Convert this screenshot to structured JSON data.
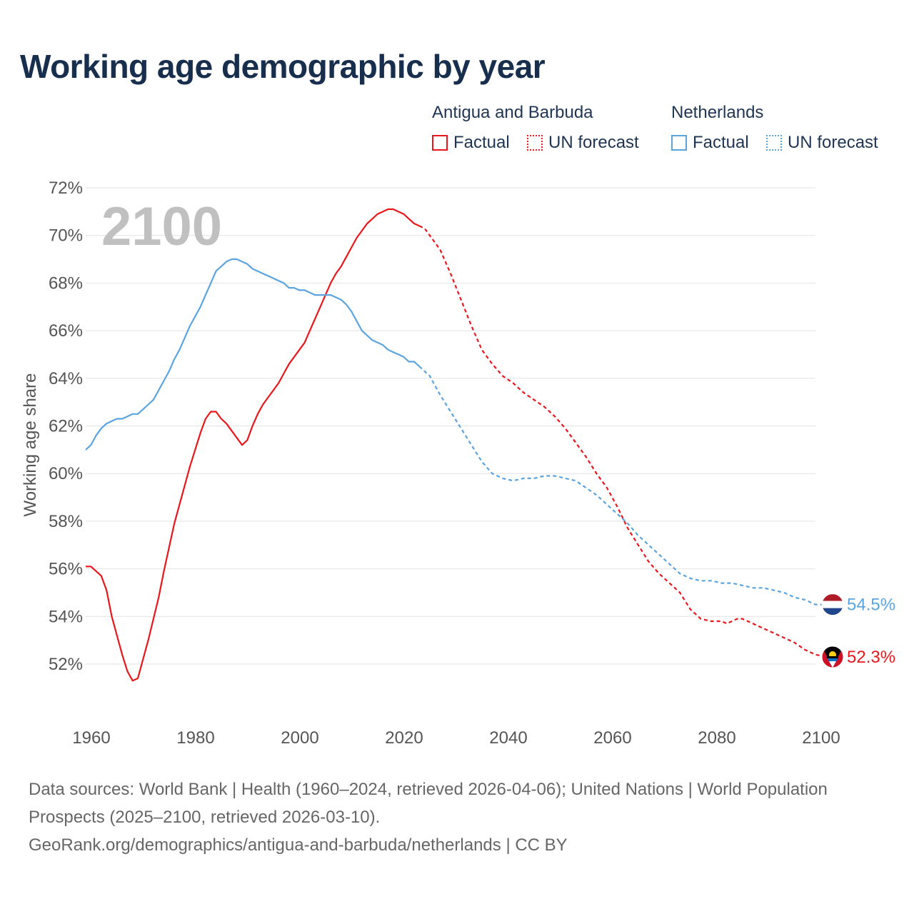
{
  "title": "Working age demographic by year",
  "legend": {
    "groups": [
      {
        "name": "Antigua and Barbuda",
        "factual_label": "Factual",
        "forecast_label": "UN forecast",
        "color": "#e8171c"
      },
      {
        "name": "Netherlands",
        "factual_label": "Factual",
        "forecast_label": "UN forecast",
        "color": "#5ba4e0"
      }
    ]
  },
  "footer": {
    "line1": "Data sources: World Bank | Health (1960–2024, retrieved 2026-04-06); United Nations | World Population Prospects (2025–2100, retrieved 2026-03-10).",
    "line2": "GeoRank.org/demographics/antigua-and-barbuda/netherlands | CC BY"
  },
  "chart_data": {
    "type": "line",
    "title": "Working age demographic by year",
    "year_watermark": "2100",
    "xlabel": "",
    "ylabel": "Working age share",
    "xlim": [
      1960,
      2103
    ],
    "ylim": [
      50,
      72
    ],
    "x_ticks": [
      1960,
      1980,
      2000,
      2020,
      2040,
      2060,
      2080,
      2100
    ],
    "y_ticks": [
      52,
      54,
      56,
      58,
      60,
      62,
      64,
      66,
      68,
      70,
      72
    ],
    "y_tick_suffix": "%",
    "grid": true,
    "legend_position": "top-right",
    "forecast_start_year": 2024,
    "series": [
      {
        "name": "Antigua and Barbuda",
        "color": "#e8171c",
        "end_label": "52.3%",
        "flag": "antigua-and-barbuda",
        "points": [
          [
            1960,
            56.1
          ],
          [
            1961,
            56.1
          ],
          [
            1962,
            55.9
          ],
          [
            1963,
            55.7
          ],
          [
            1964,
            55.1
          ],
          [
            1965,
            54.0
          ],
          [
            1966,
            53.2
          ],
          [
            1967,
            52.4
          ],
          [
            1968,
            51.7
          ],
          [
            1969,
            51.3
          ],
          [
            1970,
            51.4
          ],
          [
            1971,
            52.2
          ],
          [
            1972,
            53.0
          ],
          [
            1973,
            53.9
          ],
          [
            1974,
            54.8
          ],
          [
            1975,
            55.9
          ],
          [
            1976,
            56.9
          ],
          [
            1977,
            57.9
          ],
          [
            1978,
            58.7
          ],
          [
            1979,
            59.5
          ],
          [
            1980,
            60.3
          ],
          [
            1981,
            61.0
          ],
          [
            1982,
            61.7
          ],
          [
            1983,
            62.3
          ],
          [
            1984,
            62.6
          ],
          [
            1985,
            62.6
          ],
          [
            1986,
            62.3
          ],
          [
            1987,
            62.1
          ],
          [
            1988,
            61.8
          ],
          [
            1989,
            61.5
          ],
          [
            1990,
            61.2
          ],
          [
            1991,
            61.4
          ],
          [
            1992,
            62.0
          ],
          [
            1993,
            62.5
          ],
          [
            1994,
            62.9
          ],
          [
            1995,
            63.2
          ],
          [
            1996,
            63.5
          ],
          [
            1997,
            63.8
          ],
          [
            1998,
            64.2
          ],
          [
            1999,
            64.6
          ],
          [
            2000,
            64.9
          ],
          [
            2001,
            65.2
          ],
          [
            2002,
            65.5
          ],
          [
            2003,
            66.0
          ],
          [
            2004,
            66.5
          ],
          [
            2005,
            67.0
          ],
          [
            2006,
            67.5
          ],
          [
            2007,
            68.0
          ],
          [
            2008,
            68.4
          ],
          [
            2009,
            68.7
          ],
          [
            2010,
            69.1
          ],
          [
            2011,
            69.5
          ],
          [
            2012,
            69.9
          ],
          [
            2013,
            70.2
          ],
          [
            2014,
            70.5
          ],
          [
            2015,
            70.7
          ],
          [
            2016,
            70.9
          ],
          [
            2017,
            71.0
          ],
          [
            2018,
            71.1
          ],
          [
            2019,
            71.1
          ],
          [
            2020,
            71.0
          ],
          [
            2021,
            70.9
          ],
          [
            2022,
            70.7
          ],
          [
            2023,
            70.5
          ],
          [
            2024,
            70.4
          ],
          [
            2025,
            70.3
          ],
          [
            2026,
            70.0
          ],
          [
            2028,
            69.4
          ],
          [
            2030,
            68.4
          ],
          [
            2032,
            67.3
          ],
          [
            2034,
            66.2
          ],
          [
            2036,
            65.2
          ],
          [
            2038,
            64.6
          ],
          [
            2040,
            64.1
          ],
          [
            2042,
            63.8
          ],
          [
            2044,
            63.4
          ],
          [
            2046,
            63.1
          ],
          [
            2048,
            62.8
          ],
          [
            2050,
            62.4
          ],
          [
            2052,
            61.9
          ],
          [
            2054,
            61.3
          ],
          [
            2056,
            60.7
          ],
          [
            2058,
            60.0
          ],
          [
            2060,
            59.4
          ],
          [
            2062,
            58.6
          ],
          [
            2064,
            57.7
          ],
          [
            2066,
            57.0
          ],
          [
            2068,
            56.3
          ],
          [
            2070,
            55.8
          ],
          [
            2072,
            55.4
          ],
          [
            2074,
            55.0
          ],
          [
            2076,
            54.3
          ],
          [
            2078,
            53.9
          ],
          [
            2080,
            53.8
          ],
          [
            2082,
            53.8
          ],
          [
            2083,
            53.7
          ],
          [
            2085,
            53.9
          ],
          [
            2086,
            53.9
          ],
          [
            2088,
            53.7
          ],
          [
            2090,
            53.5
          ],
          [
            2092,
            53.3
          ],
          [
            2094,
            53.1
          ],
          [
            2096,
            52.9
          ],
          [
            2098,
            52.6
          ],
          [
            2100,
            52.4
          ],
          [
            2102,
            52.3
          ]
        ]
      },
      {
        "name": "Netherlands",
        "color": "#5ba4e0",
        "end_label": "54.5%",
        "flag": "netherlands",
        "points": [
          [
            1960,
            61.0
          ],
          [
            1961,
            61.2
          ],
          [
            1962,
            61.6
          ],
          [
            1963,
            61.9
          ],
          [
            1964,
            62.1
          ],
          [
            1965,
            62.2
          ],
          [
            1966,
            62.3
          ],
          [
            1967,
            62.3
          ],
          [
            1968,
            62.4
          ],
          [
            1969,
            62.5
          ],
          [
            1970,
            62.5
          ],
          [
            1971,
            62.7
          ],
          [
            1972,
            62.9
          ],
          [
            1973,
            63.1
          ],
          [
            1974,
            63.5
          ],
          [
            1975,
            63.9
          ],
          [
            1976,
            64.3
          ],
          [
            1977,
            64.8
          ],
          [
            1978,
            65.2
          ],
          [
            1979,
            65.7
          ],
          [
            1980,
            66.2
          ],
          [
            1981,
            66.6
          ],
          [
            1982,
            67.0
          ],
          [
            1983,
            67.5
          ],
          [
            1984,
            68.0
          ],
          [
            1985,
            68.5
          ],
          [
            1986,
            68.7
          ],
          [
            1987,
            68.9
          ],
          [
            1988,
            69.0
          ],
          [
            1989,
            69.0
          ],
          [
            1990,
            68.9
          ],
          [
            1991,
            68.8
          ],
          [
            1992,
            68.6
          ],
          [
            1993,
            68.5
          ],
          [
            1994,
            68.4
          ],
          [
            1995,
            68.3
          ],
          [
            1996,
            68.2
          ],
          [
            1997,
            68.1
          ],
          [
            1998,
            68.0
          ],
          [
            1999,
            67.8
          ],
          [
            2000,
            67.8
          ],
          [
            2001,
            67.7
          ],
          [
            2002,
            67.7
          ],
          [
            2003,
            67.6
          ],
          [
            2004,
            67.5
          ],
          [
            2005,
            67.5
          ],
          [
            2006,
            67.5
          ],
          [
            2007,
            67.5
          ],
          [
            2008,
            67.4
          ],
          [
            2009,
            67.3
          ],
          [
            2010,
            67.1
          ],
          [
            2011,
            66.8
          ],
          [
            2012,
            66.4
          ],
          [
            2013,
            66.0
          ],
          [
            2014,
            65.8
          ],
          [
            2015,
            65.6
          ],
          [
            2016,
            65.5
          ],
          [
            2017,
            65.4
          ],
          [
            2018,
            65.2
          ],
          [
            2019,
            65.1
          ],
          [
            2020,
            65.0
          ],
          [
            2021,
            64.9
          ],
          [
            2022,
            64.7
          ],
          [
            2023,
            64.7
          ],
          [
            2024,
            64.5
          ],
          [
            2025,
            64.3
          ],
          [
            2026,
            64.1
          ],
          [
            2028,
            63.3
          ],
          [
            2030,
            62.6
          ],
          [
            2032,
            61.9
          ],
          [
            2034,
            61.2
          ],
          [
            2036,
            60.5
          ],
          [
            2038,
            60.0
          ],
          [
            2040,
            59.8
          ],
          [
            2042,
            59.7
          ],
          [
            2044,
            59.8
          ],
          [
            2046,
            59.8
          ],
          [
            2048,
            59.9
          ],
          [
            2050,
            59.9
          ],
          [
            2052,
            59.8
          ],
          [
            2054,
            59.7
          ],
          [
            2056,
            59.4
          ],
          [
            2058,
            59.1
          ],
          [
            2060,
            58.7
          ],
          [
            2062,
            58.3
          ],
          [
            2064,
            57.9
          ],
          [
            2066,
            57.4
          ],
          [
            2068,
            57.0
          ],
          [
            2070,
            56.6
          ],
          [
            2072,
            56.2
          ],
          [
            2074,
            55.8
          ],
          [
            2076,
            55.6
          ],
          [
            2078,
            55.5
          ],
          [
            2080,
            55.5
          ],
          [
            2082,
            55.4
          ],
          [
            2084,
            55.4
          ],
          [
            2086,
            55.3
          ],
          [
            2088,
            55.2
          ],
          [
            2090,
            55.2
          ],
          [
            2092,
            55.1
          ],
          [
            2094,
            55.0
          ],
          [
            2096,
            54.8
          ],
          [
            2098,
            54.7
          ],
          [
            2100,
            54.5
          ],
          [
            2102,
            54.5
          ]
        ]
      }
    ]
  }
}
